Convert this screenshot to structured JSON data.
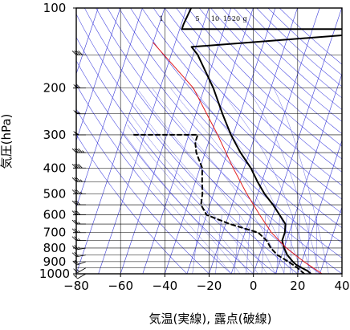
{
  "chart_data": {
    "type": "line",
    "chart_kind": "skew-T log-p sounding",
    "title": "",
    "xlabel": "気温(実線), 露点(破線)",
    "ylabel": "気圧(hPa)",
    "x_unit": "°C",
    "y_unit": "hPa",
    "xlim": [
      -80,
      40
    ],
    "ylim": [
      1000,
      100
    ],
    "y_scale": "log",
    "x_ticks": [
      -80,
      -60,
      -40,
      -20,
      0,
      20,
      40
    ],
    "x_tick_labels": [
      "−80",
      "−60",
      "−40",
      "−20",
      "0",
      "20",
      "40"
    ],
    "y_ticks": [
      100,
      200,
      300,
      400,
      500,
      600,
      700,
      800,
      900,
      1000
    ],
    "y_tick_labels": [
      "100",
      "200",
      "300",
      "400",
      "500",
      "600",
      "700",
      "800",
      "900",
      "1000"
    ],
    "grid": true,
    "pressure_gridlines": [
      100,
      150,
      200,
      250,
      300,
      350,
      400,
      450,
      500,
      550,
      600,
      650,
      700,
      750,
      800,
      850,
      900,
      950,
      1000
    ],
    "mixing_ratio_labels": [
      "1",
      "5",
      "10",
      "15",
      "20",
      "g"
    ],
    "mixing_ratio_values": [
      1,
      5,
      10,
      15,
      20
    ],
    "series": [
      {
        "role": "temperature",
        "style": "solid",
        "color": "#000000",
        "points": [
          [
            1000,
            26
          ],
          [
            975,
            24
          ],
          [
            950,
            21
          ],
          [
            925,
            18
          ],
          [
            900,
            16
          ],
          [
            850,
            12.5
          ],
          [
            800,
            10
          ],
          [
            750,
            8
          ],
          [
            700,
            8
          ],
          [
            650,
            7
          ],
          [
            600,
            3
          ],
          [
            550,
            -1.5
          ],
          [
            500,
            -7
          ],
          [
            450,
            -12
          ],
          [
            400,
            -17
          ],
          [
            350,
            -24
          ],
          [
            300,
            -31
          ],
          [
            250,
            -38
          ],
          [
            200,
            -46
          ],
          [
            150,
            -58
          ],
          [
            140,
            -62
          ],
          [
            120,
            40
          ],
          [
            120,
            -69
          ],
          [
            115,
            -69
          ],
          [
            100,
            -68
          ]
        ]
      },
      {
        "role": "dew point",
        "style": "dashed",
        "color": "#000000",
        "points": [
          [
            1000,
            23
          ],
          [
            950,
            19
          ],
          [
            900,
            14
          ],
          [
            850,
            8
          ],
          [
            800,
            4
          ],
          [
            750,
            1
          ],
          [
            700,
            -4
          ],
          [
            650,
            -18
          ],
          [
            600,
            -30
          ],
          [
            550,
            -34
          ],
          [
            500,
            -35
          ],
          [
            450,
            -37
          ],
          [
            400,
            -39
          ],
          [
            350,
            -44
          ],
          [
            320,
            -46
          ],
          [
            300,
            -46
          ],
          [
            300,
            -75
          ]
        ]
      },
      {
        "role": "reference lapse line",
        "style": "solid",
        "color": "#e31a1c",
        "points": [
          [
            1000,
            31
          ],
          [
            900,
            21
          ],
          [
            800,
            11
          ],
          [
            700,
            2
          ],
          [
            600,
            -6
          ],
          [
            500,
            -15
          ],
          [
            400,
            -25
          ],
          [
            300,
            -37
          ],
          [
            200,
            -55
          ],
          [
            135,
            -80
          ]
        ]
      }
    ],
    "wind_barbs": [
      {
        "p": 1000,
        "speed": 10,
        "dir": 240
      },
      {
        "p": 950,
        "speed": 15,
        "dir": 240
      },
      {
        "p": 900,
        "speed": 20,
        "dir": 250
      },
      {
        "p": 850,
        "speed": 20,
        "dir": 260
      },
      {
        "p": 800,
        "speed": 25,
        "dir": 260
      },
      {
        "p": 750,
        "speed": 25,
        "dir": 270
      },
      {
        "p": 700,
        "speed": 25,
        "dir": 270
      },
      {
        "p": 650,
        "speed": 25,
        "dir": 270
      },
      {
        "p": 600,
        "speed": 30,
        "dir": 270
      },
      {
        "p": 550,
        "speed": 30,
        "dir": 270
      },
      {
        "p": 500,
        "speed": 35,
        "dir": 270
      },
      {
        "p": 450,
        "speed": 35,
        "dir": 270
      },
      {
        "p": 400,
        "speed": 40,
        "dir": 270
      },
      {
        "p": 350,
        "speed": 45,
        "dir": 270
      },
      {
        "p": 300,
        "speed": 50,
        "dir": 270
      },
      {
        "p": 250,
        "speed": 55,
        "dir": 270
      },
      {
        "p": 200,
        "speed": 60,
        "dir": 270
      },
      {
        "p": 150,
        "speed": 40,
        "dir": 270
      }
    ],
    "colors": {
      "isotherm": "#3a3ad8",
      "dry_adiabat": "#4545e0",
      "moist_adiabat": "#6a6ae8",
      "mixing_ratio": "#5050e0",
      "grid": "#000000",
      "frame": "#000000"
    }
  }
}
